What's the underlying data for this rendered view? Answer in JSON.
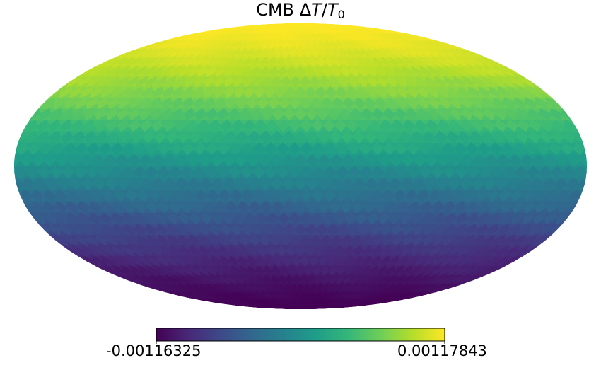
{
  "chart_data": {
    "type": "heatmap",
    "projection": "mollweide",
    "title": {
      "prefix": "CMB ",
      "delta": "Δ",
      "var": "T",
      "slash": "/",
      "var2": "T",
      "sub": "0"
    },
    "colormap": "viridis",
    "colorbar": {
      "orientation": "horizontal",
      "min_label": "-0.00116325",
      "max_label": "0.00117843",
      "vmin": -0.00116325,
      "vmax": 0.00117843
    },
    "map_description_values": {
      "north_pole_value": 0.00117843,
      "south_pole_value": -0.00116325,
      "gradient": "dipole, increasing from bottom (south) to top (north)"
    },
    "colors": {
      "viridis_stops": [
        "#440154",
        "#482878",
        "#3e4989",
        "#31688e",
        "#26828e",
        "#1f9e89",
        "#35b779",
        "#6ece58",
        "#b5de2b",
        "#fde725"
      ]
    }
  }
}
